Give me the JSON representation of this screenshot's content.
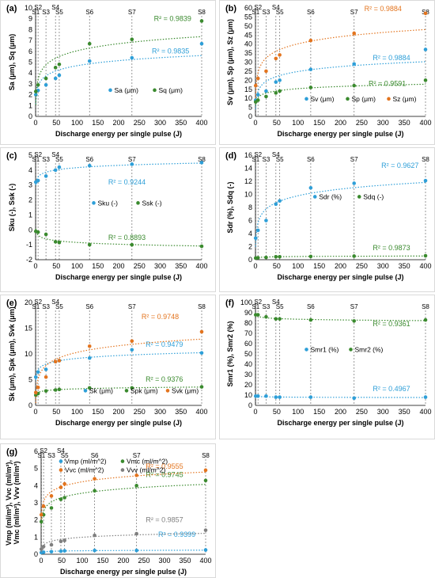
{
  "colors": {
    "blue": "#2e9fd8",
    "green": "#3a8a2e",
    "orange": "#e3741e",
    "gray": "#7f7f7f"
  },
  "sample_labels": [
    "S1",
    "S2",
    "S3",
    "S4",
    "S5",
    "S6",
    "S7",
    "S8"
  ],
  "sample_energies": [
    0.5,
    6,
    25,
    48,
    57,
    130,
    232,
    400
  ],
  "x_title": "Discharge energy per single pulse (J)",
  "chart_data": [
    {
      "panel": "(a)",
      "type": "scatter",
      "ylabel": "Sa (μm), Sq (μm)",
      "xlim": [
        0,
        400
      ],
      "xticks": [
        0,
        50,
        100,
        150,
        200,
        250,
        300,
        350,
        400
      ],
      "ylim": [
        0,
        10
      ],
      "yticks": [
        0,
        1,
        2,
        3,
        4,
        5,
        6,
        7,
        8,
        9,
        10
      ],
      "legend_position": "lower-right",
      "series": [
        {
          "name": "Sa (μm)",
          "color": "blue",
          "r2": "R² = 0.9835",
          "x": [
            0.5,
            6,
            25,
            48,
            57,
            130,
            232,
            400
          ],
          "y": [
            2.0,
            2.4,
            2.9,
            3.5,
            3.8,
            5.1,
            5.4,
            6.7
          ]
        },
        {
          "name": "Sq (μm)",
          "color": "green",
          "r2": "R² = 0.9839",
          "x": [
            0.5,
            6,
            25,
            48,
            57,
            130,
            232,
            400
          ],
          "y": [
            2.3,
            2.9,
            3.5,
            4.5,
            4.8,
            6.7,
            7.1,
            8.8
          ]
        }
      ]
    },
    {
      "panel": "(b)",
      "type": "scatter",
      "ylabel": "Sv (μm), Sp (μm), Sz (μm)",
      "xlim": [
        0,
        400
      ],
      "xticks": [
        0,
        50,
        100,
        150,
        200,
        250,
        300,
        350,
        400
      ],
      "ylim": [
        0,
        60
      ],
      "yticks": [
        0,
        5,
        10,
        15,
        20,
        25,
        30,
        35,
        40,
        45,
        50,
        55,
        60
      ],
      "legend_position": "lower-right",
      "series": [
        {
          "name": "Sv (μm)",
          "color": "blue",
          "r2": "R² = 0.9884",
          "x": [
            0.5,
            6,
            25,
            48,
            57,
            130,
            232,
            400
          ],
          "y": [
            9,
            12,
            14,
            19,
            20,
            26,
            29,
            37
          ]
        },
        {
          "name": "Sp (μm)",
          "color": "green",
          "r2": "R² = 0.9591",
          "x": [
            0.5,
            6,
            25,
            48,
            57,
            130,
            232,
            400
          ],
          "y": [
            8,
            9,
            11,
            13,
            14,
            16,
            17,
            20
          ]
        },
        {
          "name": "Sz (μm)",
          "color": "orange",
          "r2": "R² = 0.9884",
          "x": [
            0.5,
            6,
            25,
            48,
            57,
            130,
            232,
            400
          ],
          "y": [
            17,
            21,
            25,
            32,
            34,
            42,
            46,
            57
          ]
        }
      ]
    },
    {
      "panel": "(c)",
      "type": "scatter",
      "ylabel": "Sku (-), Ssk (-)",
      "xlim": [
        0,
        400
      ],
      "xticks": [
        0,
        50,
        100,
        150,
        200,
        250,
        300,
        350,
        400
      ],
      "ylim": [
        -2,
        5
      ],
      "yticks": [
        -2,
        -1,
        0,
        1,
        2,
        3,
        4,
        5
      ],
      "legend_position": "center",
      "series": [
        {
          "name": "Sku (-)",
          "color": "blue",
          "r2": "R² = 0.9244",
          "x": [
            0.5,
            6,
            25,
            48,
            57,
            130,
            232,
            400
          ],
          "y": [
            3.2,
            3.3,
            3.6,
            4.0,
            4.2,
            4.3,
            4.4,
            4.5
          ]
        },
        {
          "name": "Ssk (-)",
          "color": "green",
          "r2": "R² = 0.8893",
          "x": [
            0.5,
            6,
            25,
            48,
            57,
            130,
            232,
            400
          ],
          "y": [
            -0.1,
            -0.15,
            -0.3,
            -0.8,
            -0.85,
            -1.0,
            -1.0,
            -1.1
          ]
        }
      ]
    },
    {
      "panel": "(d)",
      "type": "scatter",
      "ylabel": "Sdr (%), Sdq (-)",
      "xlim": [
        0,
        400
      ],
      "xticks": [
        0,
        50,
        100,
        150,
        200,
        250,
        300,
        350,
        400
      ],
      "ylim": [
        0,
        16
      ],
      "yticks": [
        0,
        2,
        4,
        6,
        8,
        10,
        12,
        14,
        16
      ],
      "legend_position": "center",
      "series": [
        {
          "name": "Sdr (%)",
          "color": "blue",
          "r2": "R² = 0.9627",
          "x": [
            0.5,
            6,
            25,
            48,
            57,
            130,
            232,
            400
          ],
          "y": [
            3.3,
            4.5,
            6.0,
            8.5,
            9.0,
            11.0,
            11.7,
            12.1
          ]
        },
        {
          "name": "Sdq (-)",
          "color": "green",
          "r2": "R² = 0.9873",
          "x": [
            0.5,
            6,
            25,
            48,
            57,
            130,
            232,
            400
          ],
          "y": [
            0.25,
            0.3,
            0.35,
            0.45,
            0.45,
            0.5,
            0.55,
            0.6
          ]
        }
      ]
    },
    {
      "panel": "(e)",
      "type": "scatter",
      "ylabel": "Sk (μm), Spk (μm), Svk (μm)",
      "xlim": [
        0,
        400
      ],
      "xticks": [
        0,
        50,
        100,
        150,
        200,
        250,
        300,
        350,
        400
      ],
      "ylim": [
        0,
        20
      ],
      "yticks": [
        0,
        5,
        10,
        15,
        20
      ],
      "legend_position": "lower-center",
      "series": [
        {
          "name": "Sk (μm)",
          "color": "blue",
          "r2": "R² = 0.9479",
          "x": [
            0.5,
            6,
            25,
            48,
            57,
            130,
            232,
            400
          ],
          "y": [
            5.5,
            6.5,
            7.0,
            8.5,
            8.7,
            9.2,
            10.8,
            10.2
          ]
        },
        {
          "name": "Spk (μm)",
          "color": "green",
          "r2": "R² = 0.9376",
          "x": [
            0.5,
            6,
            25,
            48,
            57,
            130,
            232,
            400
          ],
          "y": [
            2.0,
            2.3,
            2.8,
            3.0,
            3.1,
            3.4,
            3.4,
            3.6
          ]
        },
        {
          "name": "Svk (μm)",
          "color": "orange",
          "r2": "R² = 0.9748",
          "x": [
            0.5,
            6,
            25,
            48,
            57,
            130,
            232,
            400
          ],
          "y": [
            2.5,
            3.5,
            5.5,
            8.5,
            8.7,
            11.5,
            12.5,
            14.3
          ]
        }
      ]
    },
    {
      "panel": "(f)",
      "type": "scatter",
      "ylabel": "Smr1 (%), Smr2 (%)",
      "xlim": [
        0,
        400
      ],
      "xticks": [
        0,
        50,
        100,
        150,
        200,
        250,
        300,
        350,
        400
      ],
      "ylim": [
        0,
        100
      ],
      "yticks": [
        0,
        10,
        20,
        30,
        40,
        50,
        60,
        70,
        80,
        90,
        100
      ],
      "legend_position": "center",
      "series": [
        {
          "name": "Smr1 (%)",
          "color": "blue",
          "r2": "R² = 0.4967",
          "x": [
            0.5,
            6,
            25,
            48,
            57,
            130,
            232,
            400
          ],
          "y": [
            9,
            9,
            9,
            8,
            8,
            8,
            7,
            8
          ]
        },
        {
          "name": "Smr2 (%)",
          "color": "green",
          "r2": "R² = 0.9361",
          "x": [
            0.5,
            6,
            25,
            48,
            57,
            130,
            232,
            400
          ],
          "y": [
            88,
            88,
            86,
            84,
            84,
            83,
            82,
            83
          ]
        }
      ]
    },
    {
      "panel": "(g)",
      "type": "scatter",
      "ylabel": "Vmp (ml/m²), Vvc (ml/m²), Vmc (ml/m²), Vvv (ml/m²)",
      "xlim": [
        0,
        400
      ],
      "xticks": [
        0,
        50,
        100,
        150,
        200,
        250,
        300,
        350,
        400
      ],
      "ylim": [
        0,
        6
      ],
      "yticks": [
        0,
        1,
        2,
        3,
        4,
        5,
        6
      ],
      "legend_position": "upper-center",
      "series": [
        {
          "name": "Vmp (ml/m^2)",
          "color": "blue",
          "r2": "R² = 0.9399",
          "x": [
            0.5,
            6,
            25,
            48,
            57,
            130,
            232,
            400
          ],
          "y": [
            0.1,
            0.12,
            0.15,
            0.18,
            0.2,
            0.22,
            0.22,
            0.25
          ]
        },
        {
          "name": "Vmc (ml/m^2)",
          "color": "green",
          "r2": "R² = 0.9745",
          "x": [
            0.5,
            6,
            25,
            48,
            57,
            130,
            232,
            400
          ],
          "y": [
            1.9,
            2.3,
            2.7,
            3.2,
            3.3,
            3.7,
            4.0,
            4.3
          ]
        },
        {
          "name": "Vvc (ml/m^2)",
          "color": "orange",
          "r2": "R² = 0.9555",
          "x": [
            0.5,
            6,
            25,
            48,
            57,
            130,
            232,
            400
          ],
          "y": [
            2.3,
            2.8,
            3.4,
            3.9,
            4.1,
            4.4,
            4.6,
            4.9
          ]
        },
        {
          "name": "Vvv (ml/m^2)",
          "color": "gray",
          "r2": "R² = 0.9857",
          "x": [
            0.5,
            6,
            25,
            48,
            57,
            130,
            232,
            400
          ],
          "y": [
            0.3,
            0.45,
            0.55,
            0.75,
            0.8,
            1.1,
            1.2,
            1.4
          ]
        }
      ]
    }
  ]
}
